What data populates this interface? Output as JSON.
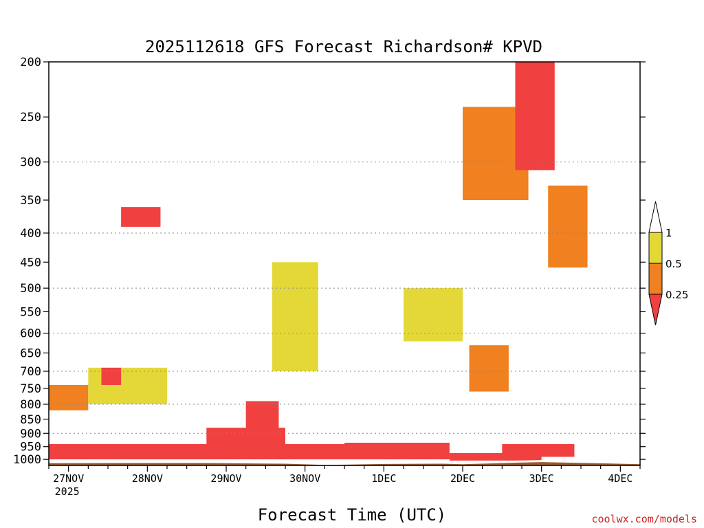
{
  "chart_data": {
    "type": "heatmap",
    "title": "2025112618 GFS Forecast Richardson# KPVD",
    "xlabel": "Forecast Time (UTC)",
    "ylabel": "",
    "y_scale": "log",
    "ylim": [
      1025,
      200
    ],
    "y_ticks": [
      200,
      250,
      300,
      350,
      400,
      450,
      500,
      550,
      600,
      650,
      700,
      750,
      800,
      850,
      900,
      950,
      1000
    ],
    "y_gridlines": [
      300,
      400,
      500,
      600,
      700,
      800,
      900
    ],
    "x_ticks": [
      {
        "label": "27NOV",
        "sublabel": "2025",
        "hour": 6
      },
      {
        "label": "28NOV",
        "hour": 30
      },
      {
        "label": "29NOV",
        "hour": 54
      },
      {
        "label": "30NOV",
        "hour": 78
      },
      {
        "label": "1DEC",
        "hour": 102
      },
      {
        "label": "2DEC",
        "hour": 126
      },
      {
        "label": "3DEC",
        "hour": 150
      },
      {
        "label": "4DEC",
        "hour": 174
      }
    ],
    "x_range_hours": [
      0,
      180
    ],
    "legend": {
      "placement": "right",
      "levels": [
        "0.25",
        "0.5",
        "1"
      ],
      "bins": [
        {
          "range": "< 0.25",
          "color": "#f04040"
        },
        {
          "range": "0.25 - 0.5",
          "color": "#f08020"
        },
        {
          "range": "0.5 - 1",
          "color": "#e4d838"
        },
        {
          "range": "> 1",
          "color": "#ffffff"
        }
      ]
    },
    "surface_color": "#9a5a2e",
    "surface_pressure": [
      [
        0,
        1016
      ],
      [
        24,
        1015
      ],
      [
        48,
        1015
      ],
      [
        72,
        1018
      ],
      [
        84,
        1023
      ],
      [
        90,
        1022
      ],
      [
        102,
        1019
      ],
      [
        120,
        1018
      ],
      [
        126,
        1020
      ],
      [
        144,
        1013
      ],
      [
        150,
        1011
      ],
      [
        160,
        1014
      ],
      [
        180,
        1020
      ]
    ],
    "regions": [
      {
        "x": [
          0,
          90
        ],
        "p": [
          1000,
          940
        ],
        "bin": "< 0.25"
      },
      {
        "x": [
          48,
          72
        ],
        "p": [
          960,
          880
        ],
        "bin": "< 0.25"
      },
      {
        "x": [
          60,
          70
        ],
        "p": [
          900,
          790
        ],
        "bin": "< 0.25"
      },
      {
        "x": [
          90,
          122
        ],
        "p": [
          1000,
          935
        ],
        "bin": "< 0.25"
      },
      {
        "x": [
          122,
          150
        ],
        "p": [
          1005,
          975
        ],
        "bin": "< 0.25"
      },
      {
        "x": [
          138,
          160
        ],
        "p": [
          990,
          940
        ],
        "bin": "< 0.25"
      },
      {
        "x": [
          0,
          12
        ],
        "p": [
          820,
          740
        ],
        "bin": "0.25 - 0.5"
      },
      {
        "x": [
          12,
          36
        ],
        "p": [
          800,
          690
        ],
        "bin": "0.5 - 1"
      },
      {
        "x": [
          16,
          22
        ],
        "p": [
          740,
          690
        ],
        "bin": "< 0.25"
      },
      {
        "x": [
          22,
          34
        ],
        "p": [
          360,
          390
        ],
        "bin": "< 0.25"
      },
      {
        "x": [
          126,
          146
        ],
        "p": [
          240,
          350
        ],
        "bin": "0.25 - 0.5"
      },
      {
        "x": [
          142,
          154
        ],
        "p": [
          200,
          310
        ],
        "bin": "< 0.25"
      },
      {
        "x": [
          152,
          164
        ],
        "p": [
          330,
          460
        ],
        "bin": "0.25 - 0.5"
      },
      {
        "x": [
          108,
          126
        ],
        "p": [
          500,
          620
        ],
        "bin": "0.5 - 1"
      },
      {
        "x": [
          128,
          140
        ],
        "p": [
          630,
          760
        ],
        "bin": "0.25 - 0.5"
      },
      {
        "x": [
          68,
          82
        ],
        "p": [
          450,
          700
        ],
        "bin": "0.5 - 1"
      }
    ]
  },
  "credit": "coolwx.com/models"
}
